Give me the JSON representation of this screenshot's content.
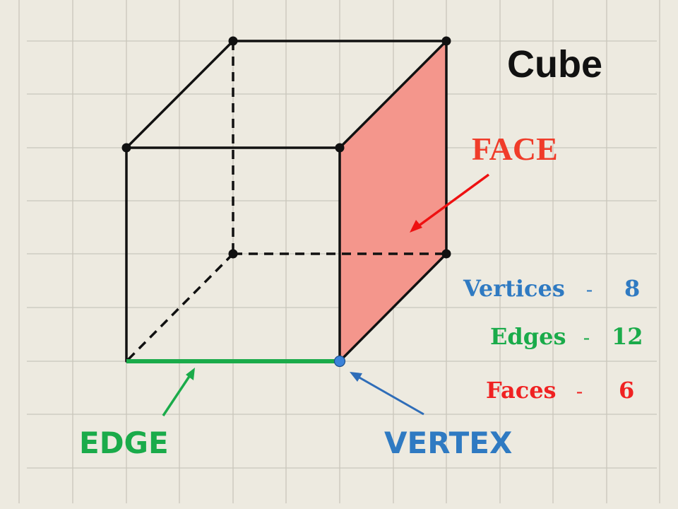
{
  "title": "Cube",
  "labels": {
    "face": "FACE",
    "edge": "EDGE",
    "vertex": "VERTEX"
  },
  "stats": {
    "vertices": {
      "label": "Vertices",
      "sep": "–",
      "value": "8"
    },
    "edges": {
      "label": "Edges",
      "sep": "–",
      "value": "12"
    },
    "faces": {
      "label": "Faces",
      "sep": "–",
      "value": "6"
    }
  },
  "colors": {
    "background": "#edeae0",
    "grid": "#c9c6bc",
    "cube_line": "#111111",
    "face_fill": "#f4968c",
    "face_label": "#f03c2a",
    "face_arrow": "#ee1111",
    "edge": "#1aab4a",
    "vertex_dot": "#3b82d9",
    "vertex_arrow": "#2f6db8",
    "vertices_text": "#2f7ac2",
    "edges_text": "#1aab4a",
    "faces_text": "#f02222"
  }
}
